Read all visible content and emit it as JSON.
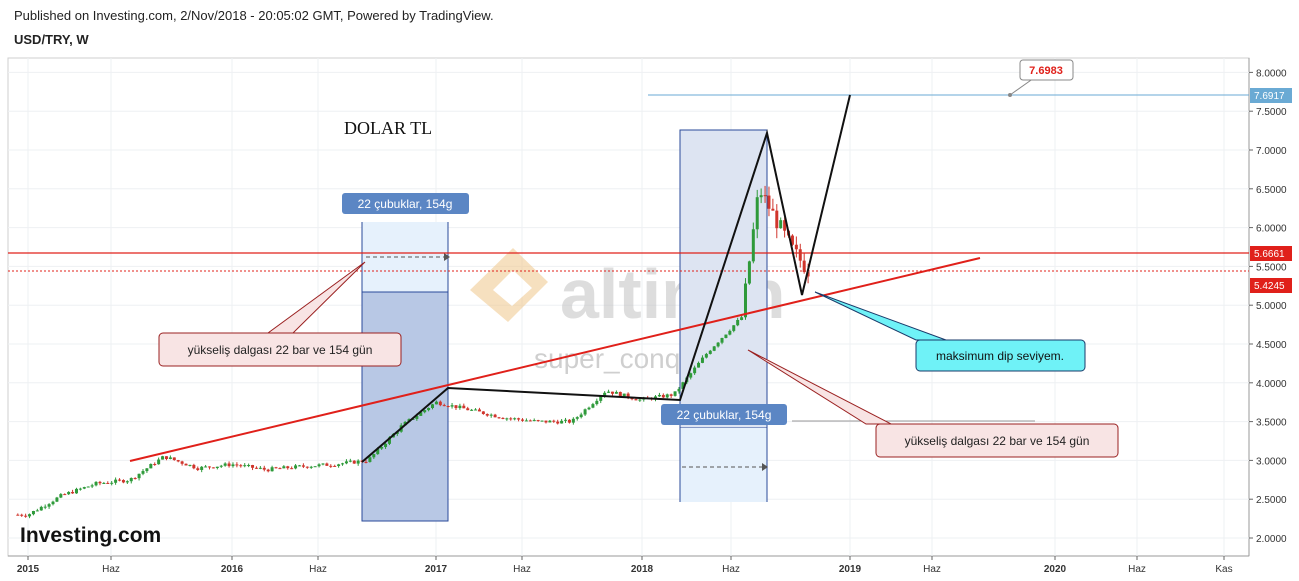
{
  "header": {
    "published": "Published on Investing.com, 2/Nov/2018 - 20:05:02 GMT, Powered by TradingView.",
    "symbol": "USD/TRY, W"
  },
  "chart_data": {
    "type": "candlestick",
    "title": "DOLAR TL",
    "watermark": [
      "altin.in",
      "super_conqueror"
    ],
    "brand": "Investing.com",
    "ylim": [
      1.75,
      8.3
    ],
    "y_ticks": [
      "8.0000",
      "7.5000",
      "7.0000",
      "6.5000",
      "6.0000",
      "5.5000",
      "5.0000",
      "4.5000",
      "4.0000",
      "3.5000",
      "3.0000",
      "2.5000",
      "2.0000"
    ],
    "x_ticks": [
      {
        "label": "2015",
        "bold": true
      },
      {
        "label": "Haz",
        "bold": false
      },
      {
        "label": "2016",
        "bold": true
      },
      {
        "label": "Haz",
        "bold": false
      },
      {
        "label": "2017",
        "bold": true
      },
      {
        "label": "Haz",
        "bold": false
      },
      {
        "label": "2018",
        "bold": true
      },
      {
        "label": "Haz",
        "bold": false
      },
      {
        "label": "2019",
        "bold": true
      },
      {
        "label": "Haz",
        "bold": false
      },
      {
        "label": "2020",
        "bold": true
      },
      {
        "label": "Haz",
        "bold": false
      },
      {
        "label": "Kas",
        "bold": false
      }
    ],
    "x_range": [
      "2015-01-01",
      "2020-11-30"
    ],
    "series": [
      {
        "name": "USD/TRY",
        "x": [
          "2015-01",
          "2015-03",
          "2015-05",
          "2015-07",
          "2015-09",
          "2015-11",
          "2016-01",
          "2016-03",
          "2016-05",
          "2016-07",
          "2016-09",
          "2016-11",
          "2017-01",
          "2017-03",
          "2017-05",
          "2017-07",
          "2017-09",
          "2017-11",
          "2018-01",
          "2018-03",
          "2018-05",
          "2018-07",
          "2018-08",
          "2018-09",
          "2018-10",
          "2018-11"
        ],
        "close": [
          2.3,
          2.55,
          2.7,
          2.75,
          3.05,
          2.9,
          2.95,
          2.88,
          2.92,
          2.95,
          3.0,
          3.45,
          3.75,
          3.65,
          3.55,
          3.5,
          3.5,
          3.9,
          3.78,
          3.85,
          4.4,
          4.85,
          6.5,
          6.1,
          5.7,
          5.42
        ]
      }
    ],
    "price_labels": [
      {
        "value": "7.6917",
        "color": "#6aaad4"
      },
      {
        "value": "5.6661",
        "color": "#e0201a"
      },
      {
        "value": "5.4245",
        "color": "#e0201a"
      }
    ],
    "target_label": "7.6983",
    "ranges": [
      {
        "label": "22 çubuklar, 154g"
      },
      {
        "label": "22 çubuklar, 154g"
      }
    ],
    "callouts": [
      "yükseliş dalgası 22 bar ve 154 gün",
      "yükseliş dalgası 22 bar ve 154 gün",
      "maksimum dip seviyem."
    ],
    "colors": {
      "up": "#2e9a3a",
      "down": "#d0352c",
      "support": "#e0201a",
      "resistance": "#6aaad4",
      "callout": "#f8e4e4",
      "cyan_callout": "#6ff2f7"
    }
  }
}
